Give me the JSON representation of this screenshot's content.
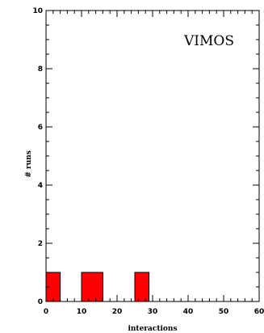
{
  "chart_data": {
    "type": "bar",
    "annotation": "VIMOS",
    "xlabel": "interactions",
    "ylabel": "# runs",
    "xlim": [
      0,
      60
    ],
    "ylim": [
      0,
      10
    ],
    "x_major_ticks": [
      0,
      10,
      20,
      30,
      40,
      50,
      60
    ],
    "x_tick_labels": [
      "0",
      "10",
      "20",
      "30",
      "40",
      "50",
      "60"
    ],
    "y_major_ticks": [
      0,
      2,
      4,
      6,
      8,
      10
    ],
    "y_tick_labels": [
      "0",
      "2",
      "4",
      "6",
      "8",
      "10"
    ],
    "bars": [
      {
        "x0": 0,
        "x1": 4,
        "value": 1
      },
      {
        "x0": 10,
        "x1": 16,
        "value": 1
      },
      {
        "x0": 25,
        "x1": 29,
        "value": 1
      }
    ],
    "bar_color": "#ff0000",
    "grid": false,
    "legend": "none"
  }
}
